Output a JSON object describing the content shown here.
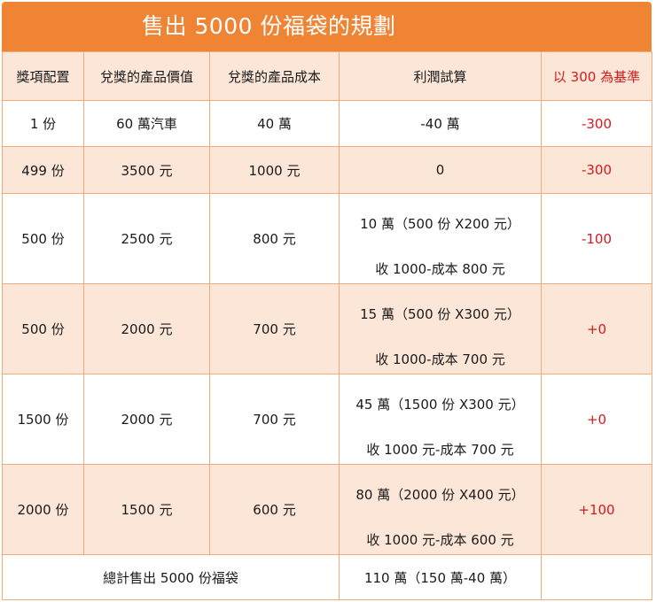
{
  "title": "售出 5000 份福袋的規劃",
  "headers": [
    "獎項配置",
    "兌獎的產品價值",
    "兌獎的產品成本",
    "利潤試算",
    "以 300 為基準"
  ],
  "rows": [
    {
      "qty": "1 份",
      "value": "60 萬汽車",
      "cost": "40 萬",
      "profit": [
        "-40 萬"
      ],
      "base": "-300"
    },
    {
      "qty": "499 份",
      "value": "3500 元",
      "cost": "1000 元",
      "profit": [
        "0"
      ],
      "base": "-300"
    },
    {
      "qty": "500 份",
      "value": "2500 元",
      "cost": "800 元",
      "profit": [
        "10 萬（500 份 X200 元）",
        "收 1000-成本 800 元"
      ],
      "base": "-100"
    },
    {
      "qty": "500 份",
      "value": "2000 元",
      "cost": "700 元",
      "profit": [
        "15 萬（500 份 X300 元）",
        "收 1000-成本 700 元"
      ],
      "base": "+0"
    },
    {
      "qty": "1500 份",
      "value": "2000 元",
      "cost": "700 元",
      "profit": [
        "45 萬（1500 份 X300 元）",
        "收 1000 元-成本 700 元"
      ],
      "base": "+0"
    },
    {
      "qty": "2000 份",
      "value": "1500 元",
      "cost": "600 元",
      "profit": [
        "80 萬（2000 份 X400 元）",
        "收 1000 元-成本 600 元"
      ],
      "base": "+100"
    }
  ],
  "total": {
    "label": "總計售出 5000 份福袋",
    "profit": "110 萬（150 萬-40 萬）",
    "base": ""
  },
  "colors": {
    "title_bg": "#ef8435",
    "row_shade": "#fce6d8",
    "border": "#f0ad7c",
    "accent_red": "#d7191c"
  }
}
